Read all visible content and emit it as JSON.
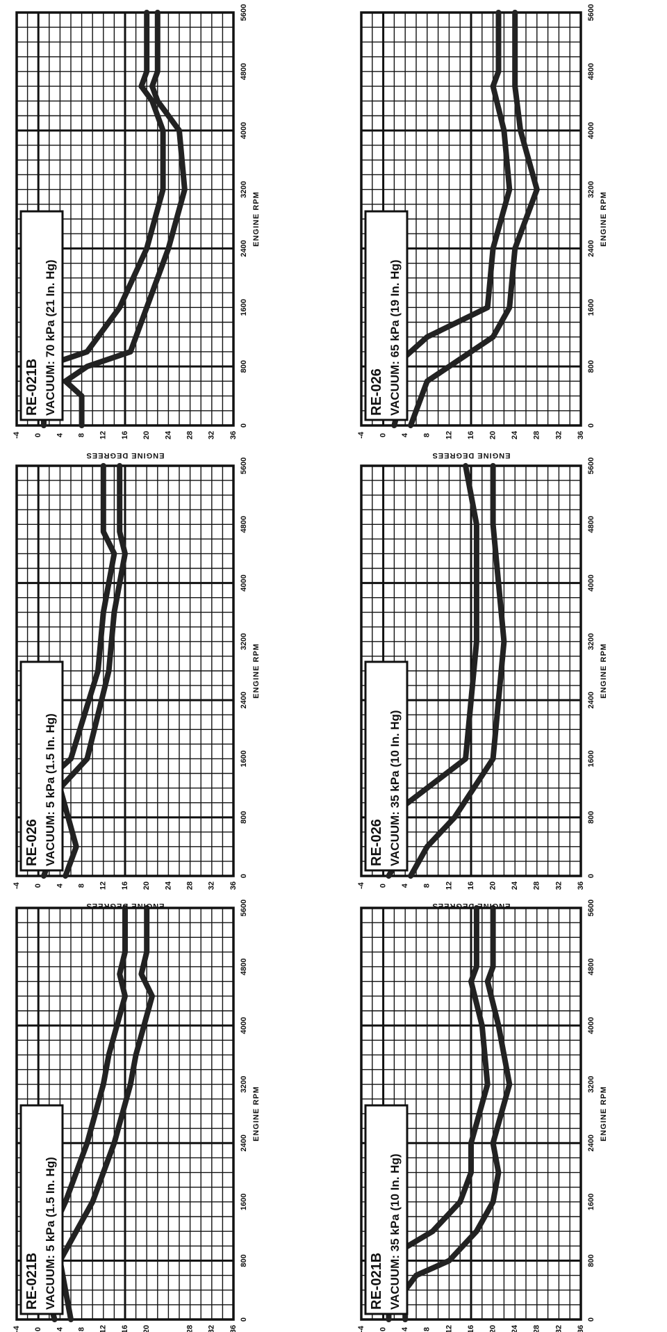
{
  "chart_data": [
    {
      "type": "line",
      "model": "RE-021B",
      "vacuum": "VACUUM: 5 kPa (1.5 In. Hg)",
      "xlabel": "ENGINE RPM",
      "ylabel": "ENGINE DEGREES",
      "xlim": [
        0,
        5600
      ],
      "ylim": [
        -4,
        36
      ],
      "x_ticks": [
        "0",
        "800",
        "1600",
        "2400",
        "3200",
        "4000",
        "4800",
        "5600"
      ],
      "y_ticks": [
        "-4",
        "0",
        "4",
        "8",
        "12",
        "16",
        "20",
        "28",
        "32",
        "36"
      ],
      "series": [
        {
          "x": [
            0,
            800,
            1600,
            2400,
            3200,
            3600,
            4400,
            4700,
            5000,
            5600
          ],
          "y": [
            6,
            4,
            10,
            14,
            17,
            18,
            21,
            19,
            20,
            20
          ]
        },
        {
          "x": [
            0,
            800,
            1600,
            2400,
            3200,
            3600,
            4400,
            4700,
            5000,
            5600
          ],
          "y": [
            3,
            0,
            5,
            9,
            12,
            13,
            16,
            15,
            16,
            16
          ]
        }
      ]
    },
    {
      "type": "line",
      "model": "RE-026",
      "vacuum": "VACUUM: 5 kPa (1.5 In. Hg)",
      "xlabel": "ENGINE RPM",
      "ylabel": "ENGINE DEGREES",
      "xlim": [
        0,
        5600
      ],
      "ylim": [
        -4,
        36
      ],
      "x_ticks": [
        "0",
        "800",
        "1600",
        "2400",
        "3200",
        "4000",
        "4800",
        "5600"
      ],
      "y_ticks": [
        "-4",
        "0",
        "4",
        "8",
        "12",
        "16",
        "20",
        "24",
        "28",
        "32",
        "36"
      ],
      "series": [
        {
          "x": [
            0,
            400,
            1200,
            1600,
            2800,
            3600,
            4400,
            4700,
            5600
          ],
          "y": [
            5,
            7,
            4,
            9,
            13,
            14,
            16,
            15,
            15
          ]
        },
        {
          "x": [
            0,
            400,
            1200,
            1600,
            2800,
            3600,
            4400,
            4700,
            5600
          ],
          "y": [
            1,
            3,
            0,
            6,
            11,
            12,
            14,
            12,
            12
          ]
        }
      ]
    },
    {
      "type": "line",
      "model": "RE-021B",
      "vacuum": "VACUUM: 70 kPa (21 In. Hg)",
      "xlabel": "ENGINE RPM",
      "ylabel": "ENGINE DEGREES",
      "xlim": [
        0,
        5600
      ],
      "ylim": [
        -4,
        36
      ],
      "x_ticks": [
        "0",
        "800",
        "1600",
        "2400",
        "3200",
        "4000",
        "4800",
        "5600"
      ],
      "y_ticks": [
        "-4",
        "0",
        "4",
        "8",
        "12",
        "16",
        "20",
        "24",
        "28",
        "32",
        "36"
      ],
      "series": [
        {
          "x": [
            0,
            400,
            600,
            800,
            1000,
            1600,
            2400,
            3200,
            4000,
            4400,
            4600,
            4800,
            5600
          ],
          "y": [
            8,
            8,
            5,
            9,
            17,
            20,
            24,
            27,
            26,
            22,
            21,
            22,
            22
          ]
        },
        {
          "x": [
            0,
            400,
            600,
            800,
            1000,
            1600,
            2400,
            3200,
            4000,
            4400,
            4600,
            4800,
            5600
          ],
          "y": [
            1,
            1,
            4,
            1,
            9,
            15,
            20,
            23,
            23,
            21,
            19,
            20,
            20
          ]
        }
      ]
    },
    {
      "type": "line",
      "model": "RE-021B",
      "vacuum": "VACUUM: 35 kPa (10 In. Hg)",
      "xlabel": "ENGINE RPM",
      "ylabel": "ENGINE DEGREES",
      "xlim": [
        0,
        5600
      ],
      "ylim": [
        -4,
        36
      ],
      "x_ticks": [
        "0",
        "800",
        "1600",
        "2400",
        "3200",
        "4000",
        "4800",
        "5600"
      ],
      "y_ticks": [
        "-4",
        "0",
        "4",
        "8",
        "12",
        "16",
        "20",
        "24",
        "28",
        "32",
        "36"
      ],
      "series": [
        {
          "x": [
            0,
            400,
            600,
            800,
            1200,
            1600,
            2000,
            2400,
            3200,
            4000,
            4600,
            4800,
            5600
          ],
          "y": [
            4,
            4,
            6,
            12,
            17,
            20,
            21,
            20,
            23,
            21,
            19,
            20,
            20
          ]
        },
        {
          "x": [
            0,
            400,
            600,
            800,
            1200,
            1600,
            2000,
            2400,
            3200,
            4000,
            4600,
            4800,
            5600
          ],
          "y": [
            1,
            1,
            3,
            0,
            9,
            14,
            16,
            16,
            19,
            18,
            16,
            17,
            17
          ]
        }
      ]
    },
    {
      "type": "line",
      "model": "RE-026",
      "vacuum": "VACUUM: 35 kPa (10 In. Hg)",
      "xlabel": "ENGINE RPM",
      "ylabel": "ENGINE DEGREES",
      "xlim": [
        0,
        5600
      ],
      "ylim": [
        -4,
        36
      ],
      "x_ticks": [
        "0",
        "800",
        "1600",
        "2400",
        "3200",
        "4000",
        "4800",
        "5600"
      ],
      "y_ticks": [
        "-4",
        "0",
        "4",
        "8",
        "12",
        "16",
        "20",
        "24",
        "28",
        "32",
        "36"
      ],
      "series": [
        {
          "x": [
            0,
            400,
            800,
            1600,
            2400,
            3200,
            4000,
            4800,
            5600
          ],
          "y": [
            5,
            8,
            13,
            20,
            21,
            22,
            21,
            20,
            20
          ]
        },
        {
          "x": [
            0,
            400,
            800,
            1600,
            2400,
            3200,
            4000,
            4800,
            5600
          ],
          "y": [
            1,
            4,
            1,
            15,
            16,
            17,
            17,
            17,
            15
          ]
        }
      ]
    },
    {
      "type": "line",
      "model": "RE-026",
      "vacuum": "VACUUM: 65 kPa (19 In. Hg)",
      "xlabel": "ENGINE RPM",
      "ylabel": "ENGINE DEGREES",
      "xlim": [
        0,
        5600
      ],
      "ylim": [
        -4,
        36
      ],
      "x_ticks": [
        "0",
        "800",
        "1600",
        "2400",
        "3200",
        "4000",
        "4800",
        "5600"
      ],
      "y_ticks": [
        "-4",
        "0",
        "4",
        "8",
        "12",
        "16",
        "20",
        "24",
        "28",
        "32",
        "36"
      ],
      "series": [
        {
          "x": [
            0,
            600,
            800,
            1200,
            1600,
            2400,
            3200,
            4000,
            4600,
            4800,
            5600
          ],
          "y": [
            5,
            8,
            12,
            20,
            23,
            24,
            28,
            25,
            24,
            24,
            24
          ]
        },
        {
          "x": [
            0,
            600,
            800,
            1200,
            1600,
            2400,
            3200,
            4000,
            4600,
            4800,
            5600
          ],
          "y": [
            2,
            4,
            2,
            8,
            19,
            20,
            23,
            22,
            20,
            21,
            21
          ]
        }
      ]
    }
  ]
}
